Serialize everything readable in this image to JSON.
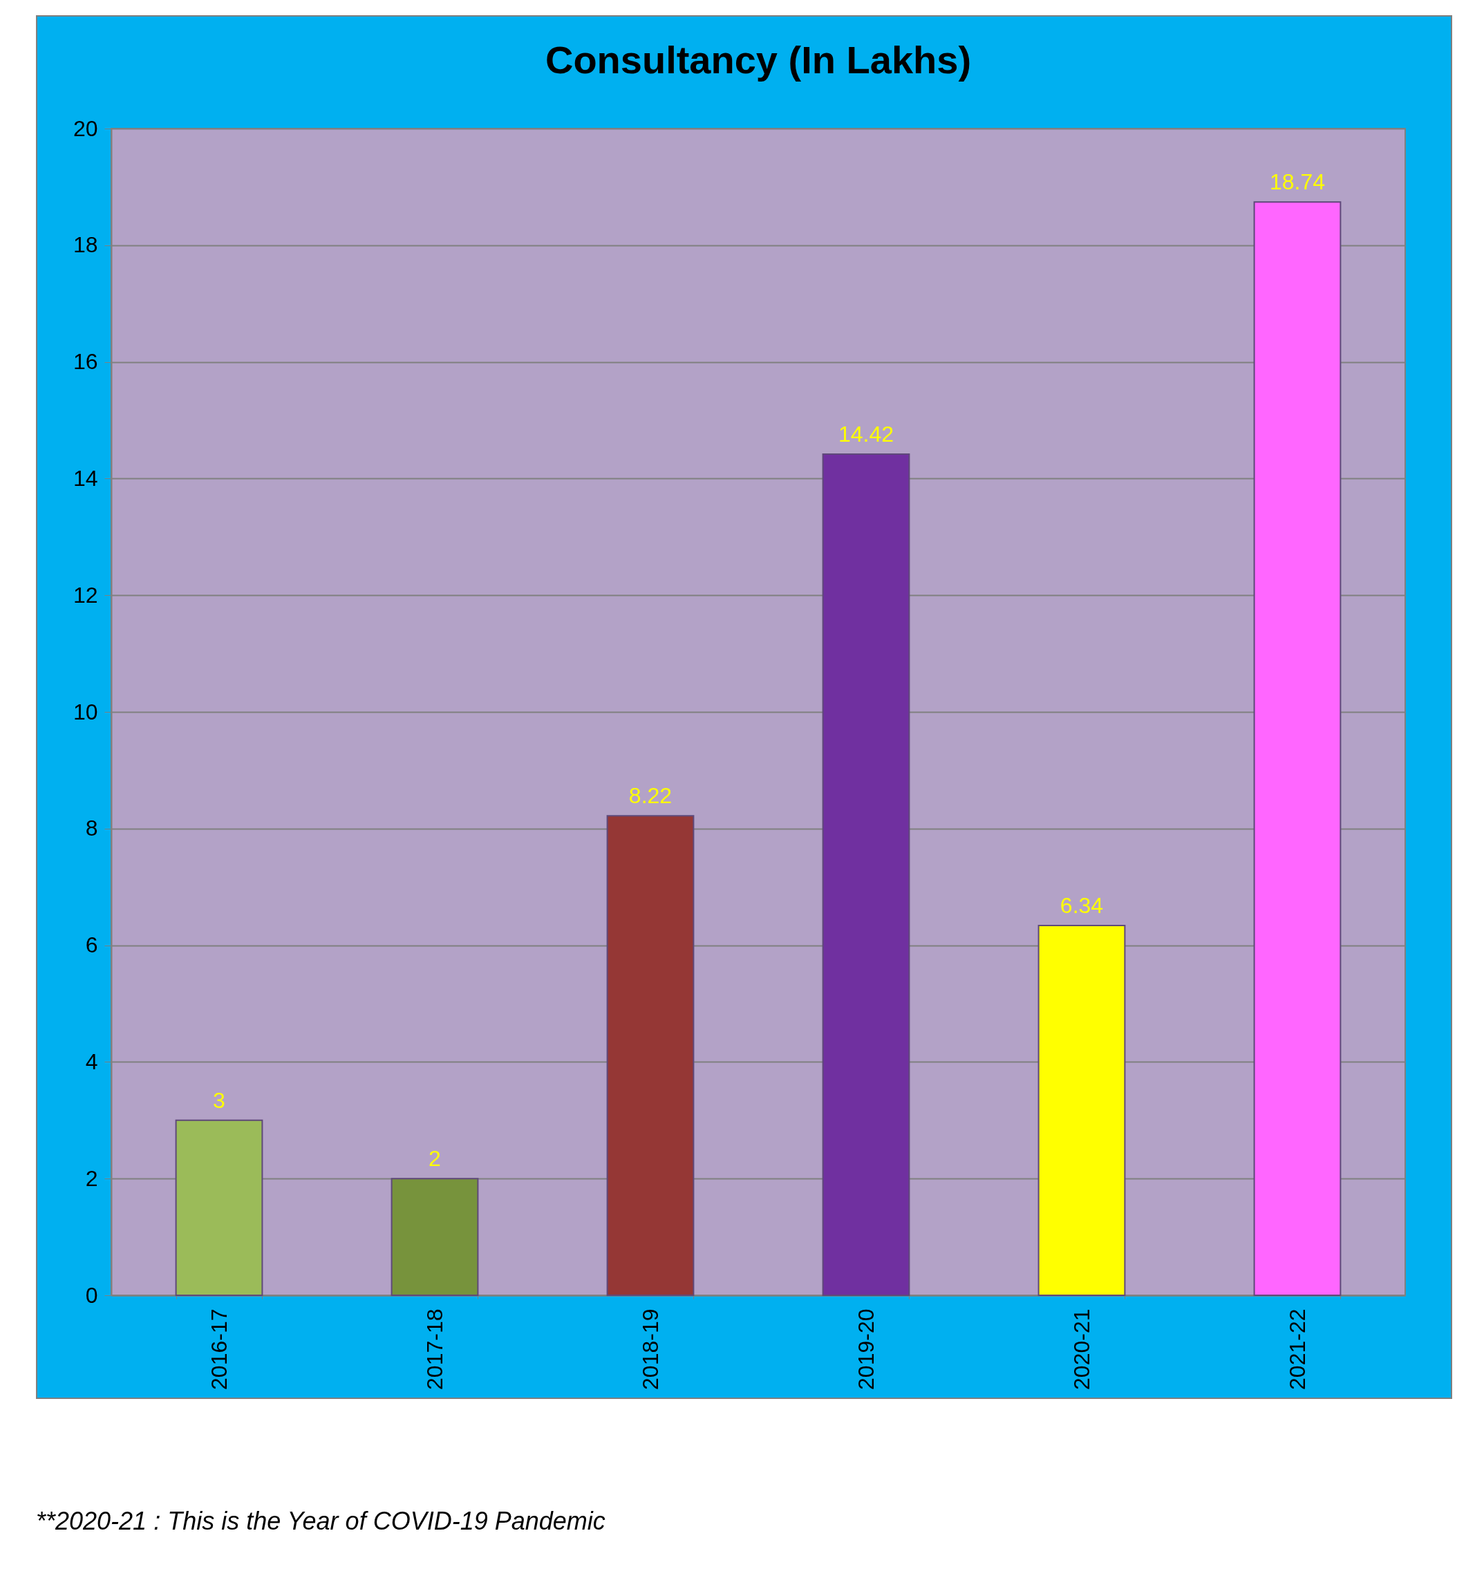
{
  "chart_data": {
    "type": "bar",
    "title": "Consultancy (In Lakhs)",
    "categories": [
      "2016-17",
      "2017-18",
      "2018-19",
      "2019-20",
      "2020-21",
      "2021-22"
    ],
    "values": [
      3,
      2,
      8.22,
      14.42,
      6.34,
      18.74
    ],
    "colors": [
      "#9bbb59",
      "#77933c",
      "#953735",
      "#7030a0",
      "#ffff00",
      "#ff66ff"
    ],
    "ylim": [
      0,
      20
    ],
    "yticks": [
      0,
      2,
      4,
      6,
      8,
      10,
      12,
      14,
      16,
      18,
      20
    ],
    "grid": "y",
    "data_labels": true,
    "annotations": [
      "**2020-21 : This is the Year of COVID-19  Pandemic"
    ]
  }
}
